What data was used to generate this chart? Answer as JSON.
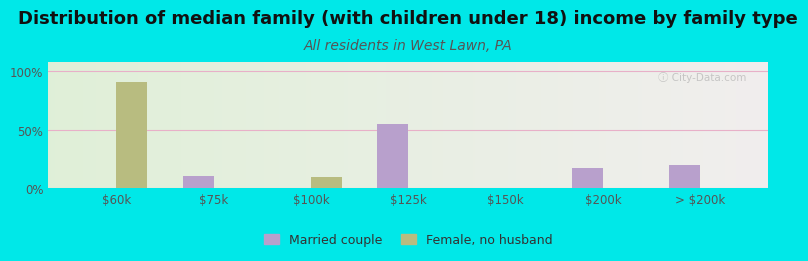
{
  "title": "Distribution of median family (with children under 18) income by family type",
  "subtitle": "All residents in West Lawn, PA",
  "categories": [
    "$60k",
    "$75k",
    "$100k",
    "$125k",
    "$150k",
    "$200k",
    "> $200k"
  ],
  "married_couple": [
    0,
    10,
    0,
    55,
    0,
    17,
    20
  ],
  "female_no_husband": [
    91,
    0,
    9,
    0,
    0,
    0,
    0
  ],
  "married_color": "#b8a0cc",
  "female_color": "#b8bc80",
  "background_outer": "#00e8e8",
  "title_fontsize": 13,
  "subtitle_fontsize": 10,
  "subtitle_color": "#555555",
  "ylabel_ticks": [
    "0%",
    "50%",
    "100%"
  ],
  "yticks": [
    0,
    50,
    100
  ],
  "bar_width": 0.32,
  "watermark": "ⓘ City-Data.com",
  "grid_color": "#e8b0c8",
  "tick_color": "#555555"
}
